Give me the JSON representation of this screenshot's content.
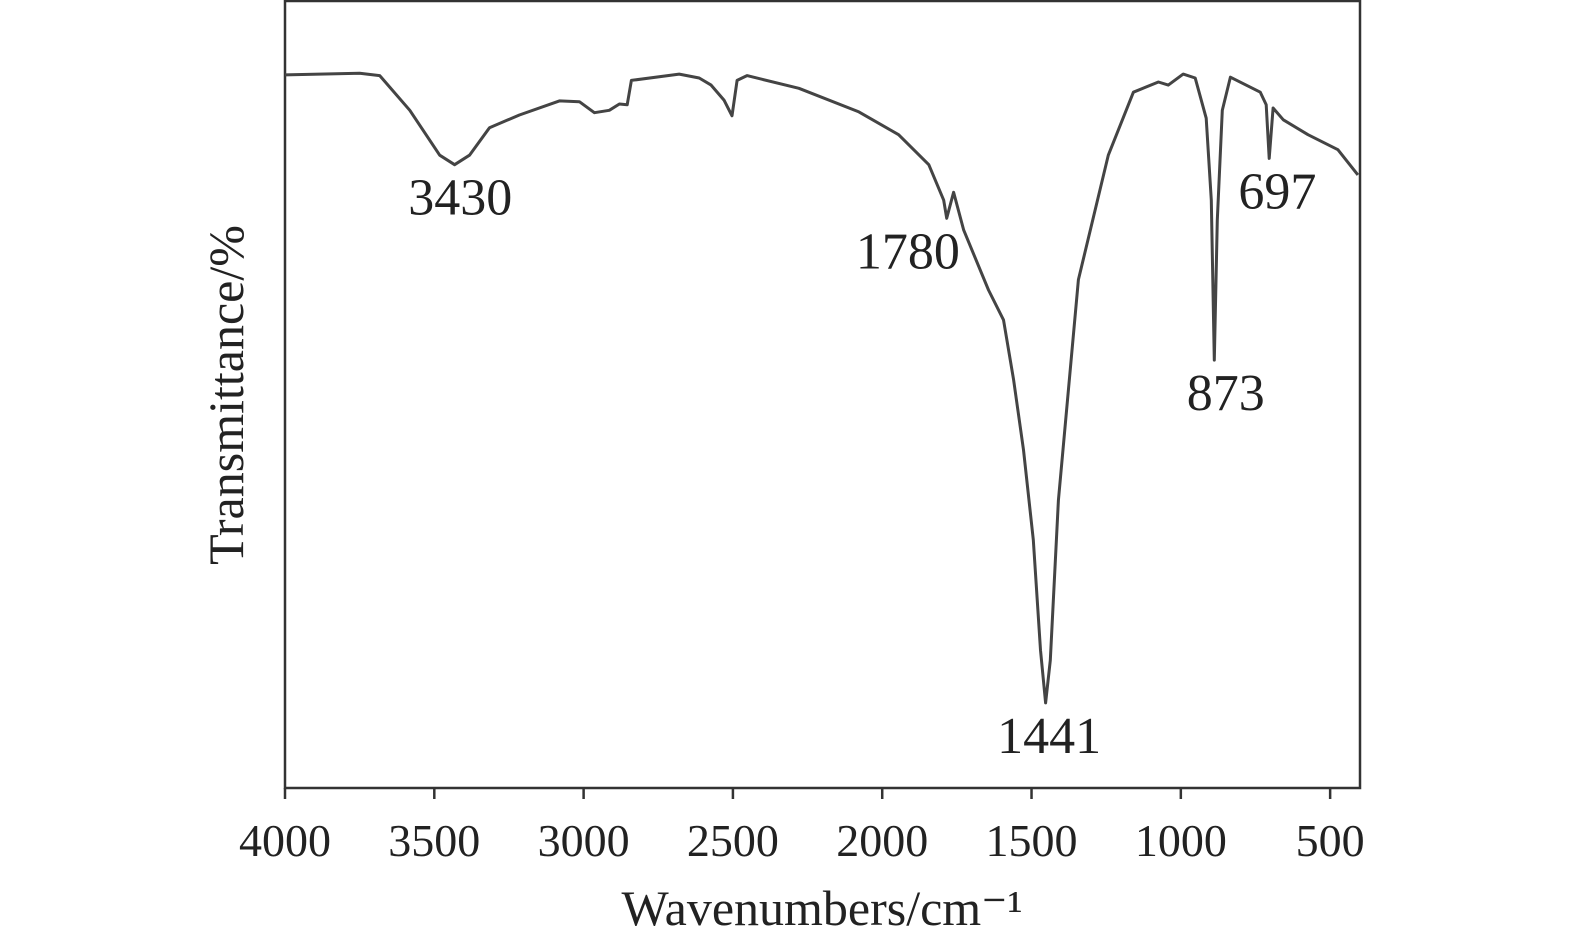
{
  "chart_data": {
    "type": "line",
    "xlabel": "Wavenumbers/cm⁻¹",
    "ylabel": "Transmittance/%",
    "x": [
      4000,
      3750,
      3683,
      3582,
      3482,
      3432,
      3382,
      3315,
      3215,
      3081,
      3014,
      2964,
      2914,
      2880,
      2854,
      2840,
      2680,
      2613,
      2573,
      2530,
      2503,
      2486,
      2453,
      2279,
      2078,
      1945,
      1844,
      1794,
      1784,
      1761,
      1727,
      1644,
      1594,
      1560,
      1527,
      1494,
      1470,
      1453,
      1437,
      1410,
      1343,
      1243,
      1159,
      1075,
      1042,
      992,
      952,
      915,
      898,
      888,
      878,
      861,
      834,
      734,
      714,
      704,
      691,
      657,
      574,
      474,
      407
    ],
    "values": [
      90.5,
      90.7,
      90.4,
      86.0,
      80.3,
      79.1,
      80.3,
      83.8,
      85.4,
      87.2,
      87.1,
      85.7,
      86.0,
      86.8,
      86.7,
      89.8,
      90.6,
      90.1,
      89.2,
      87.3,
      85.3,
      89.8,
      90.4,
      88.8,
      85.8,
      82.9,
      79.1,
      74.6,
      72.3,
      75.6,
      70.8,
      63.2,
      59.4,
      51.8,
      42.9,
      31.5,
      17.5,
      10.8,
      16.2,
      36.5,
      64.5,
      80.3,
      88.3,
      89.6,
      89.2,
      90.6,
      90.1,
      85.0,
      74.6,
      54.3,
      72.1,
      86.0,
      90.2,
      88.3,
      86.7,
      79.9,
      86.3,
      84.8,
      82.9,
      81.0,
      77.8
    ],
    "color": "#444444",
    "xlim": [
      4000,
      400
    ],
    "ylim": [
      0,
      100
    ],
    "xticks": [
      4000,
      3500,
      3000,
      2500,
      2000,
      1500,
      1000,
      500
    ],
    "annotations": [
      3430,
      1780,
      1441,
      873,
      697
    ],
    "grid": false
  }
}
